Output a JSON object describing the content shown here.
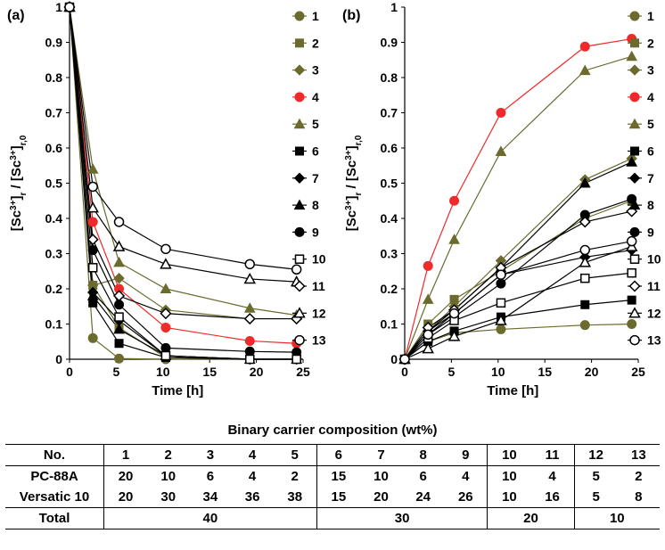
{
  "chart_data": [
    {
      "type": "line",
      "panel_label": "(a)",
      "xlabel": "Time [h]",
      "ylabel": "[Sc3+]r / [Sc3+]r,0",
      "xlim": [
        0,
        25
      ],
      "ylim": [
        0,
        1
      ],
      "xticks": [
        "0",
        "5",
        "10",
        "15",
        "20",
        "25"
      ],
      "yticks": [
        "0",
        "0.1",
        "0.2",
        "0.3",
        "0.4",
        "0.5",
        "0.6",
        "0.7",
        "0.8",
        "0.9",
        "1"
      ],
      "legend_position": "right",
      "x": [
        0,
        2.5,
        5.3,
        10.3,
        19.3,
        24.3
      ],
      "series": [
        {
          "name": "1",
          "color": "#6B6B2E",
          "marker": "circle",
          "values": [
            1,
            0.06,
            0.002,
            0.0,
            0.0,
            0.0
          ]
        },
        {
          "name": "2",
          "color": "#6B6B2E",
          "marker": "square",
          "values": [
            1,
            0.21,
            0.09,
            0.005,
            0.0,
            0.0
          ]
        },
        {
          "name": "3",
          "color": "#6B6B2E",
          "marker": "diamond",
          "values": [
            1,
            0.21,
            0.23,
            0.14,
            0.115,
            0.115
          ]
        },
        {
          "name": "4",
          "color": "#F02A2A",
          "marker": "circle",
          "values": [
            1,
            0.39,
            0.2,
            0.09,
            0.052,
            0.045
          ]
        },
        {
          "name": "5",
          "color": "#6B6B2E",
          "marker": "triangle",
          "values": [
            1,
            0.54,
            0.275,
            0.2,
            0.145,
            0.125
          ]
        },
        {
          "name": "6",
          "color": "#000000",
          "marker": "square",
          "values": [
            1,
            0.16,
            0.045,
            0.005,
            0.0,
            0.0
          ]
        },
        {
          "name": "7",
          "color": "#000000",
          "marker": "diamond",
          "values": [
            1,
            0.19,
            0.11,
            0.01,
            0.0,
            0.0
          ]
        },
        {
          "name": "8",
          "color": "#000000",
          "marker": "triangle",
          "values": [
            1,
            0.18,
            0.085,
            0.01,
            0.0,
            0.0
          ]
        },
        {
          "name": "9",
          "color": "#000000",
          "marker": "circle",
          "values": [
            1,
            0.31,
            0.155,
            0.032,
            0.022,
            0.02
          ]
        },
        {
          "name": "10",
          "color": "#000000",
          "marker": "open-square",
          "values": [
            1,
            0.26,
            0.12,
            0.01,
            0.0,
            0.0
          ]
        },
        {
          "name": "11",
          "color": "#000000",
          "marker": "open-diamond",
          "values": [
            1,
            0.34,
            0.18,
            0.13,
            0.115,
            0.115
          ]
        },
        {
          "name": "12",
          "color": "#000000",
          "marker": "open-triangle",
          "values": [
            1,
            0.43,
            0.32,
            0.27,
            0.228,
            0.22
          ]
        },
        {
          "name": "13",
          "color": "#000000",
          "marker": "open-circle",
          "values": [
            1,
            0.49,
            0.39,
            0.313,
            0.27,
            0.255
          ]
        }
      ]
    },
    {
      "type": "line",
      "panel_label": "(b)",
      "xlabel": "Time [h]",
      "ylabel": "[Sc3+]r / [Sc3+]r,0",
      "xlim": [
        0,
        25
      ],
      "ylim": [
        0,
        1
      ],
      "xticks": [
        "0",
        "5",
        "10",
        "15",
        "20",
        "25"
      ],
      "yticks": [
        "0",
        "0.1",
        "0.2",
        "0.3",
        "0.4",
        "0.5",
        "0.6",
        "0.7",
        "0.8",
        "0.9",
        "1"
      ],
      "legend_position": "right",
      "x": [
        0,
        2.5,
        5.3,
        10.3,
        19.3,
        24.3
      ],
      "series": [
        {
          "name": "1",
          "color": "#6B6B2E",
          "marker": "circle",
          "values": [
            0,
            0.05,
            0.075,
            0.085,
            0.097,
            0.1
          ]
        },
        {
          "name": "2",
          "color": "#6B6B2E",
          "marker": "square",
          "values": [
            0,
            0.1,
            0.17,
            0.25,
            0.4,
            0.45
          ]
        },
        {
          "name": "3",
          "color": "#6B6B2E",
          "marker": "diamond",
          "values": [
            0,
            0.08,
            0.15,
            0.28,
            0.51,
            0.57
          ]
        },
        {
          "name": "4",
          "color": "#F02A2A",
          "marker": "circle",
          "values": [
            0,
            0.265,
            0.45,
            0.7,
            0.888,
            0.91
          ]
        },
        {
          "name": "5",
          "color": "#6B6B2E",
          "marker": "triangle",
          "values": [
            0,
            0.17,
            0.34,
            0.59,
            0.82,
            0.86
          ]
        },
        {
          "name": "6",
          "color": "#000000",
          "marker": "square",
          "values": [
            0,
            0.05,
            0.08,
            0.12,
            0.155,
            0.168
          ]
        },
        {
          "name": "7",
          "color": "#000000",
          "marker": "diamond",
          "values": [
            0,
            0.08,
            0.13,
            0.24,
            0.29,
            0.31
          ]
        },
        {
          "name": "8",
          "color": "#000000",
          "marker": "triangle",
          "values": [
            0,
            0.08,
            0.14,
            0.26,
            0.5,
            0.56
          ]
        },
        {
          "name": "9",
          "color": "#000000",
          "marker": "circle",
          "values": [
            0,
            0.07,
            0.12,
            0.215,
            0.41,
            0.455
          ]
        },
        {
          "name": "10",
          "color": "#000000",
          "marker": "open-square",
          "values": [
            0,
            0.06,
            0.11,
            0.16,
            0.23,
            0.245
          ]
        },
        {
          "name": "11",
          "color": "#000000",
          "marker": "open-diamond",
          "values": [
            0,
            0.09,
            0.14,
            0.26,
            0.39,
            0.42
          ]
        },
        {
          "name": "12",
          "color": "#000000",
          "marker": "open-triangle",
          "values": [
            0,
            0.03,
            0.065,
            0.11,
            0.275,
            0.32
          ]
        },
        {
          "name": "13",
          "color": "#000000",
          "marker": "open-circle",
          "values": [
            0,
            0.07,
            0.13,
            0.24,
            0.31,
            0.335
          ]
        }
      ]
    }
  ],
  "table": {
    "title": "Binary carrier composition (wt%)",
    "header": [
      "No.",
      "1",
      "2",
      "3",
      "4",
      "5",
      "6",
      "7",
      "8",
      "9",
      "10",
      "11",
      "12",
      "13"
    ],
    "rows": [
      {
        "label": "PC-88A",
        "values": [
          "20",
          "10",
          "6",
          "4",
          "2",
          "15",
          "10",
          "6",
          "4",
          "10",
          "4",
          "5",
          "2"
        ]
      },
      {
        "label": "Versatic 10",
        "values": [
          "20",
          "30",
          "34",
          "36",
          "38",
          "15",
          "20",
          "24",
          "26",
          "10",
          "16",
          "5",
          "8"
        ]
      }
    ],
    "total": {
      "label": "Total",
      "values": [
        "40",
        "30",
        "20",
        "10"
      ]
    }
  }
}
